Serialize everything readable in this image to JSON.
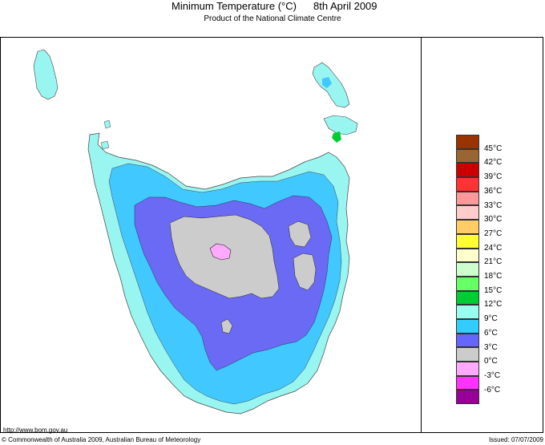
{
  "header": {
    "title": "Minimum Temperature (°C)",
    "date": "8th April 2009",
    "subtitle": "Product of the National Climate Centre"
  },
  "legend": {
    "items": [
      {
        "label": "45°C",
        "color": "#993300"
      },
      {
        "label": "42°C",
        "color": "#996633"
      },
      {
        "label": "39°C",
        "color": "#cc0000"
      },
      {
        "label": "36°C",
        "color": "#ff3333"
      },
      {
        "label": "33°C",
        "color": "#ff9999"
      },
      {
        "label": "30°C",
        "color": "#ffcccc"
      },
      {
        "label": "27°C",
        "color": "#ffcc66"
      },
      {
        "label": "24°C",
        "color": "#ffff33"
      },
      {
        "label": "21°C",
        "color": "#ffffcc"
      },
      {
        "label": "18°C",
        "color": "#ccffcc"
      },
      {
        "label": "15°C",
        "color": "#66ff66"
      },
      {
        "label": "12°C",
        "color": "#00cc33"
      },
      {
        "label": "9°C",
        "color": "#99ffee"
      },
      {
        "label": "6°C",
        "color": "#33ccff"
      },
      {
        "label": "3°C",
        "color": "#6666ff"
      },
      {
        "label": "0°C",
        "color": "#cccccc"
      },
      {
        "label": "-3°C",
        "color": "#ffaaff"
      },
      {
        "label": "-6°C",
        "color": "#ff33ff"
      },
      {
        "label": "",
        "color": "#990099"
      }
    ]
  },
  "map_colors": {
    "nine": "#99f5f0",
    "six": "#40c8ff",
    "three": "#6a6af5",
    "zero": "#cccccc",
    "minus3": "#ffaaff",
    "twelve": "#00cc33"
  },
  "footer": {
    "url": "http://www.bom.gov.au",
    "copyright": "© Commonwealth of Australia 2009, Australian Bureau of Meteorology",
    "issued": "Issued: 07/07/2009"
  }
}
